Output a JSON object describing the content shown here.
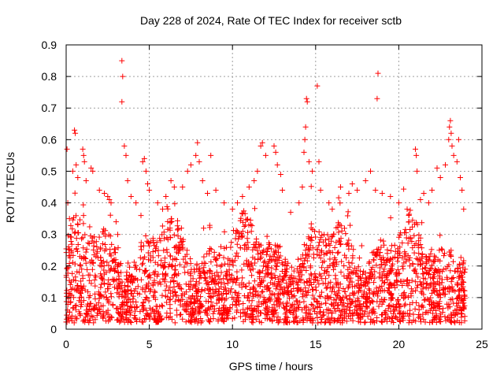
{
  "chart_data": {
    "type": "scatter",
    "title": "Day 228 of 2024, Rate Of TEC Index for receiver sctb",
    "xlabel": "GPS time / hours",
    "ylabel": "ROTI / TECUs",
    "xlim": [
      0,
      25
    ],
    "ylim": [
      0,
      0.9
    ],
    "xticks": [
      0,
      5,
      10,
      15,
      20,
      25
    ],
    "yticks": [
      0,
      0.1,
      0.2,
      0.3,
      0.4,
      0.5,
      0.6,
      0.7,
      0.8,
      0.9
    ],
    "xtick_labels": [
      "0",
      "5",
      "10",
      "15",
      "20",
      "25"
    ],
    "ytick_labels": [
      "0",
      "0.1",
      "0.2",
      "0.3",
      "0.4",
      "0.5",
      "0.6",
      "0.7",
      "0.8",
      "0.9"
    ],
    "grid": true,
    "marker": "+",
    "color": "#ff0000",
    "series": [
      {
        "points": [
          [
            0.05,
            0.57
          ],
          [
            0.1,
            0.4
          ],
          [
            0.2,
            0.35
          ],
          [
            0.4,
            0.5
          ],
          [
            0.5,
            0.63
          ],
          [
            0.55,
            0.62
          ],
          [
            0.6,
            0.52
          ],
          [
            0.7,
            0.48
          ],
          [
            1.0,
            0.57
          ],
          [
            1.05,
            0.55
          ],
          [
            1.1,
            0.53
          ],
          [
            1.2,
            0.47
          ],
          [
            1.5,
            0.51
          ],
          [
            1.6,
            0.5
          ],
          [
            2.0,
            0.44
          ],
          [
            2.3,
            0.43
          ],
          [
            2.5,
            0.42
          ],
          [
            2.6,
            0.41
          ],
          [
            2.7,
            0.4
          ],
          [
            3.0,
            0.34
          ],
          [
            3.1,
            0.3
          ],
          [
            3.35,
            0.85
          ],
          [
            3.4,
            0.8
          ],
          [
            3.35,
            0.72
          ],
          [
            3.5,
            0.58
          ],
          [
            3.6,
            0.55
          ],
          [
            3.7,
            0.47
          ],
          [
            3.9,
            0.42
          ],
          [
            4.2,
            0.4
          ],
          [
            4.5,
            0.36
          ],
          [
            4.6,
            0.53
          ],
          [
            4.7,
            0.54
          ],
          [
            4.8,
            0.5
          ],
          [
            4.9,
            0.46
          ],
          [
            5.0,
            0.44
          ],
          [
            5.5,
            0.4
          ],
          [
            5.8,
            0.38
          ],
          [
            6.0,
            0.42
          ],
          [
            6.3,
            0.47
          ],
          [
            6.5,
            0.45
          ],
          [
            7.0,
            0.45
          ],
          [
            7.3,
            0.5
          ],
          [
            7.5,
            0.52
          ],
          [
            7.8,
            0.55
          ],
          [
            7.9,
            0.59
          ],
          [
            8.0,
            0.53
          ],
          [
            8.2,
            0.47
          ],
          [
            8.5,
            0.43
          ],
          [
            8.7,
            0.55
          ],
          [
            9.0,
            0.44
          ],
          [
            9.5,
            0.4
          ],
          [
            10.0,
            0.38
          ],
          [
            10.3,
            0.4
          ],
          [
            10.6,
            0.42
          ],
          [
            11.0,
            0.45
          ],
          [
            11.3,
            0.47
          ],
          [
            11.5,
            0.5
          ],
          [
            11.7,
            0.58
          ],
          [
            11.8,
            0.59
          ],
          [
            12.0,
            0.55
          ],
          [
            12.5,
            0.58
          ],
          [
            12.6,
            0.56
          ],
          [
            12.7,
            0.52
          ],
          [
            12.9,
            0.49
          ],
          [
            13.0,
            0.44
          ],
          [
            13.5,
            0.37
          ],
          [
            14.0,
            0.4
          ],
          [
            14.2,
            0.45
          ],
          [
            14.3,
            0.56
          ],
          [
            14.35,
            0.6
          ],
          [
            14.4,
            0.64
          ],
          [
            14.45,
            0.73
          ],
          [
            14.5,
            0.72
          ],
          [
            14.6,
            0.53
          ],
          [
            14.8,
            0.5
          ],
          [
            15.1,
            0.77
          ],
          [
            15.2,
            0.53
          ],
          [
            15.3,
            0.44
          ],
          [
            15.8,
            0.4
          ],
          [
            16.0,
            0.38
          ],
          [
            16.5,
            0.45
          ],
          [
            17.0,
            0.43
          ],
          [
            17.2,
            0.46
          ],
          [
            17.5,
            0.44
          ],
          [
            18.0,
            0.47
          ],
          [
            18.3,
            0.5
          ],
          [
            18.6,
            0.44
          ],
          [
            18.7,
            0.73
          ],
          [
            18.75,
            0.81
          ],
          [
            19.0,
            0.43
          ],
          [
            19.5,
            0.42
          ],
          [
            20.0,
            0.4
          ],
          [
            20.5,
            0.38
          ],
          [
            21.0,
            0.57
          ],
          [
            21.05,
            0.55
          ],
          [
            21.1,
            0.5
          ],
          [
            21.3,
            0.41
          ],
          [
            21.5,
            0.43
          ],
          [
            21.8,
            0.4
          ],
          [
            22.0,
            0.44
          ],
          [
            22.3,
            0.51
          ],
          [
            22.5,
            0.48
          ],
          [
            22.8,
            0.52
          ],
          [
            23.0,
            0.6
          ],
          [
            23.05,
            0.64
          ],
          [
            23.1,
            0.66
          ],
          [
            23.15,
            0.62
          ],
          [
            23.2,
            0.58
          ],
          [
            23.3,
            0.55
          ],
          [
            23.5,
            0.53
          ],
          [
            23.6,
            0.6
          ],
          [
            23.7,
            0.48
          ],
          [
            23.8,
            0.44
          ],
          [
            23.9,
            0.38
          ]
        ]
      }
    ]
  }
}
